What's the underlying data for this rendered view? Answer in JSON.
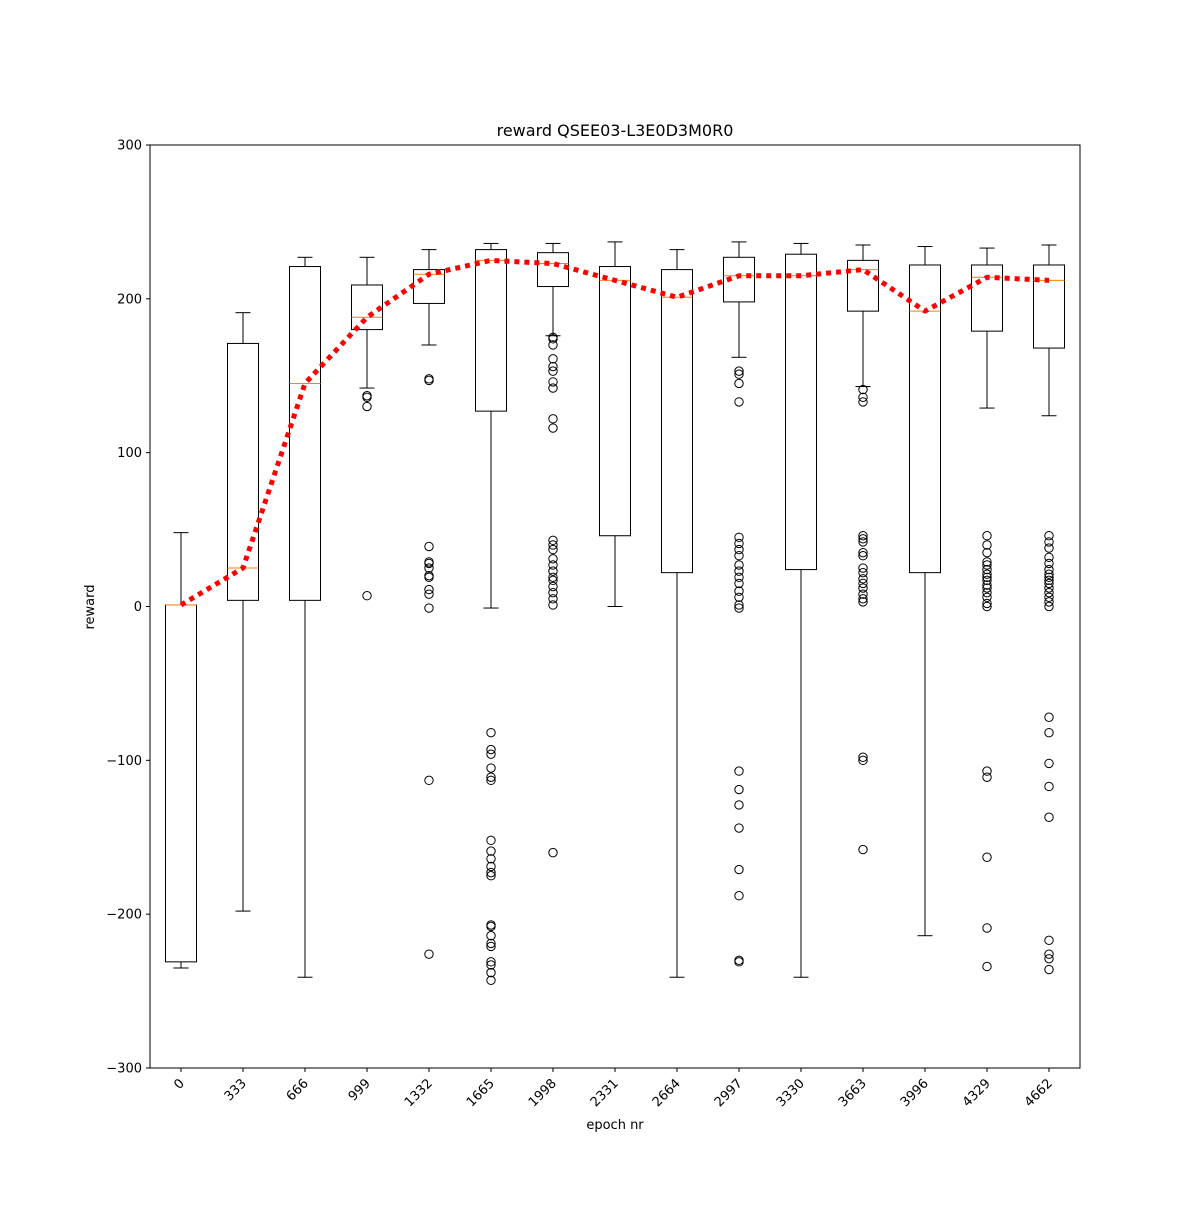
{
  "chart_data": {
    "type": "box",
    "title": "reward QSEE03-L3E0D3M0R0",
    "xlabel": "epoch nr",
    "ylabel": "reward",
    "ylim": [
      -300,
      300
    ],
    "yticks": [
      300,
      200,
      100,
      0,
      -100,
      -200,
      -300
    ],
    "ytick_labels": [
      "300",
      "200",
      "100",
      "0",
      "−100",
      "−200",
      "−300"
    ],
    "grid": false,
    "colors": {
      "box": "#000000",
      "median": "#ff7f0e",
      "mean_line": "#ff0000"
    },
    "categories": [
      "0",
      "333",
      "666",
      "999",
      "1332",
      "1665",
      "1998",
      "2331",
      "2664",
      "2997",
      "3330",
      "3663",
      "3996",
      "4329",
      "4662"
    ],
    "boxes": [
      {
        "epoch": "0",
        "whisker_low": -235,
        "q1": -231,
        "median": 1,
        "q3": 1,
        "whisker_high": 48,
        "outliers": []
      },
      {
        "epoch": "333",
        "whisker_low": -198,
        "q1": 4,
        "median": 25,
        "q3": 171,
        "whisker_high": 191,
        "outliers": []
      },
      {
        "epoch": "666",
        "whisker_low": -241,
        "q1": 4,
        "median": 145,
        "q3": 221,
        "whisker_high": 227,
        "outliers": []
      },
      {
        "epoch": "999",
        "whisker_low": 142,
        "q1": 180,
        "median": 188,
        "q3": 209,
        "whisker_high": 227,
        "outliers": [
          137,
          136,
          130,
          7
        ]
      },
      {
        "epoch": "1332",
        "whisker_low": 170,
        "q1": 197,
        "median": 216,
        "q3": 219,
        "whisker_high": 232,
        "outliers": [
          148,
          147,
          39,
          29,
          28,
          25,
          20,
          19,
          11,
          8,
          -1,
          -113,
          -226
        ]
      },
      {
        "epoch": "1665",
        "whisker_low": -1,
        "q1": 127,
        "median": 225,
        "q3": 232,
        "whisker_high": 236,
        "outliers": [
          -82,
          -93,
          -96,
          -105,
          -111,
          -113,
          -152,
          -159,
          -164,
          -169,
          -173,
          -175,
          -207,
          -208,
          -214,
          -219,
          -221,
          -231,
          -233,
          -238,
          -243
        ]
      },
      {
        "epoch": "1998",
        "whisker_low": 176,
        "q1": 208,
        "median": 223,
        "q3": 230,
        "whisker_high": 236,
        "outliers": [
          175,
          174,
          170,
          161,
          156,
          153,
          146,
          142,
          122,
          116,
          43,
          40,
          37,
          31,
          27,
          23,
          19,
          17,
          13,
          9,
          5,
          1,
          -160
        ]
      },
      {
        "epoch": "2331",
        "whisker_low": 0,
        "q1": 46,
        "median": 212,
        "q3": 221,
        "whisker_high": 237,
        "outliers": []
      },
      {
        "epoch": "2664",
        "whisker_low": -241,
        "q1": 22,
        "median": 201,
        "q3": 219,
        "whisker_high": 232,
        "outliers": []
      },
      {
        "epoch": "2997",
        "whisker_low": 162,
        "q1": 198,
        "median": 215,
        "q3": 227,
        "whisker_high": 237,
        "outliers": [
          153,
          151,
          145,
          133,
          45,
          41,
          37,
          33,
          27,
          23,
          19,
          15,
          10,
          6,
          1,
          -1,
          -107,
          -119,
          -129,
          -144,
          -171,
          -188,
          -230,
          -231
        ]
      },
      {
        "epoch": "3330",
        "whisker_low": -241,
        "q1": 24,
        "median": 215,
        "q3": 229,
        "whisker_high": 236,
        "outliers": []
      },
      {
        "epoch": "3663",
        "whisker_low": 143,
        "q1": 192,
        "median": 219,
        "q3": 225,
        "whisker_high": 235,
        "outliers": [
          141,
          136,
          133,
          46,
          44,
          42,
          35,
          33,
          25,
          22,
          18,
          15,
          12,
          8,
          5,
          3,
          -98,
          -100,
          -158
        ]
      },
      {
        "epoch": "3996",
        "whisker_low": -214,
        "q1": 22,
        "median": 192,
        "q3": 222,
        "whisker_high": 234,
        "outliers": []
      },
      {
        "epoch": "4329",
        "whisker_low": 129,
        "q1": 179,
        "median": 214,
        "q3": 222,
        "whisker_high": 233,
        "outliers": [
          46,
          40,
          35,
          29,
          27,
          24,
          21,
          19,
          17,
          14,
          12,
          9,
          6,
          2,
          0,
          -107,
          -111,
          -163,
          -209,
          -234
        ]
      },
      {
        "epoch": "4662",
        "whisker_low": 124,
        "q1": 168,
        "median": 212,
        "q3": 222,
        "whisker_high": 235,
        "outliers": [
          46,
          42,
          38,
          32,
          28,
          24,
          21,
          19,
          17,
          15,
          12,
          9,
          6,
          3,
          0,
          -72,
          -82,
          -102,
          -117,
          -137,
          -217,
          -226,
          -229,
          -236
        ]
      }
    ],
    "mean_line": {
      "style": "dotted",
      "values": [
        1,
        25,
        145,
        188,
        216,
        225,
        223,
        212,
        201,
        215,
        215,
        219,
        192,
        214,
        212
      ]
    }
  }
}
